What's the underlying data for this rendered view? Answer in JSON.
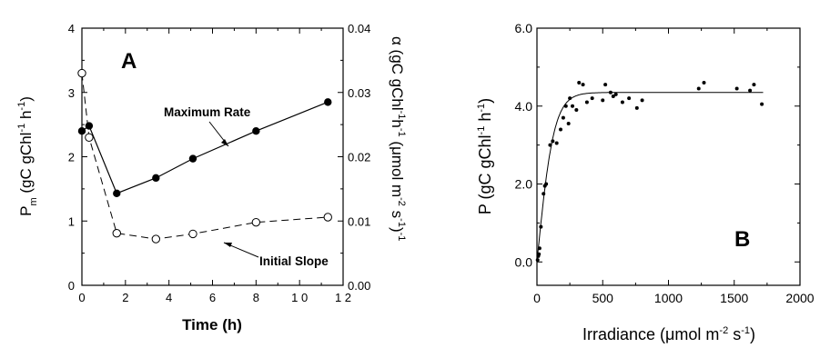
{
  "chart_data": [
    {
      "type": "line",
      "panel_label": "A",
      "xlabel": "Time (h)",
      "ylabel_main": "P",
      "ylabel_sub": "m",
      "ylabel_rest": "(gC gChl",
      "ylabel_sup1": "-1",
      "ylabel_h": "h",
      "ylabel_sup2": "-1",
      "ylabel_close": ")",
      "y2label_prefix": "α (gC gChl",
      "y2label_sup1": "-1",
      "y2label_h": "h",
      "y2label_sup2": "-1",
      "y2label_mid": "(μmol m",
      "y2label_sup3": "-2",
      "y2label_s": "s",
      "y2label_sup4": "-1",
      "y2label_close": ")",
      "y2label_sup5": "-1",
      "xlim": [
        0,
        12
      ],
      "ylim": [
        0,
        4
      ],
      "y2lim": [
        0,
        0.04
      ],
      "x_ticks": [
        "0",
        "2",
        "4",
        "6",
        "8",
        "1 0",
        "1 2"
      ],
      "y_ticks": [
        "0",
        "1",
        "2",
        "3",
        "4"
      ],
      "y2_ticks": [
        "0.00",
        "0.01",
        "0.02",
        "0.03",
        "0.04"
      ],
      "series": [
        {
          "name": "Maximum Rate",
          "marker": "filled-circle",
          "line": "solid",
          "axis": "left",
          "x": [
            0,
            0.33,
            1.6,
            3.4,
            5.1,
            8.0,
            11.3
          ],
          "y": [
            2.4,
            2.48,
            1.43,
            1.67,
            1.97,
            2.4,
            2.85
          ]
        },
        {
          "name": "Initial Slope",
          "marker": "open-circle",
          "line": "dashed",
          "axis": "right",
          "x": [
            0,
            0.33,
            1.6,
            3.4,
            5.1,
            8.0,
            11.3
          ],
          "y": [
            0.033,
            0.023,
            0.0081,
            0.0072,
            0.008,
            0.0098,
            0.0106
          ]
        }
      ],
      "annotations": [
        "Maximum Rate",
        "Initial Slope"
      ]
    },
    {
      "type": "scatter",
      "panel_label": "B",
      "xlabel_main": "Irradiance (μmol m",
      "xlabel_sup1": "-2",
      "xlabel_s": "s",
      "xlabel_sup2": "-1",
      "xlabel_close": ")",
      "ylabel_main": "P (gC gChl",
      "ylabel_sup1": "-1",
      "ylabel_h": "h",
      "ylabel_sup2": "-1",
      "ylabel_close": ")",
      "xlim": [
        0,
        2000
      ],
      "ylim": [
        -0.6,
        6.0
      ],
      "x_ticks": [
        "0",
        "500",
        "1000",
        "1500",
        "2000"
      ],
      "y_ticks": [
        "0.0",
        "2.0",
        "4.0",
        "6.0"
      ],
      "points": {
        "x": [
          5,
          10,
          15,
          20,
          30,
          50,
          60,
          70,
          100,
          120,
          150,
          180,
          200,
          220,
          240,
          250,
          270,
          300,
          320,
          350,
          380,
          420,
          500,
          520,
          560,
          580,
          600,
          650,
          700,
          760,
          800,
          1230,
          1270,
          1520,
          1620,
          1650,
          1710
        ],
        "y": [
          0.05,
          0.15,
          0.2,
          0.35,
          0.9,
          1.75,
          1.95,
          2.0,
          3.0,
          3.1,
          3.05,
          3.4,
          3.7,
          4.0,
          3.55,
          4.2,
          4.0,
          3.9,
          4.6,
          4.55,
          4.1,
          4.2,
          4.15,
          4.55,
          4.35,
          4.25,
          4.3,
          4.1,
          4.2,
          3.95,
          4.15,
          4.45,
          4.6,
          4.45,
          4.4,
          4.55,
          4.05
        ]
      },
      "fit": {
        "model": "saturating",
        "pmax": 4.35,
        "alpha": 0.0336
      }
    }
  ]
}
